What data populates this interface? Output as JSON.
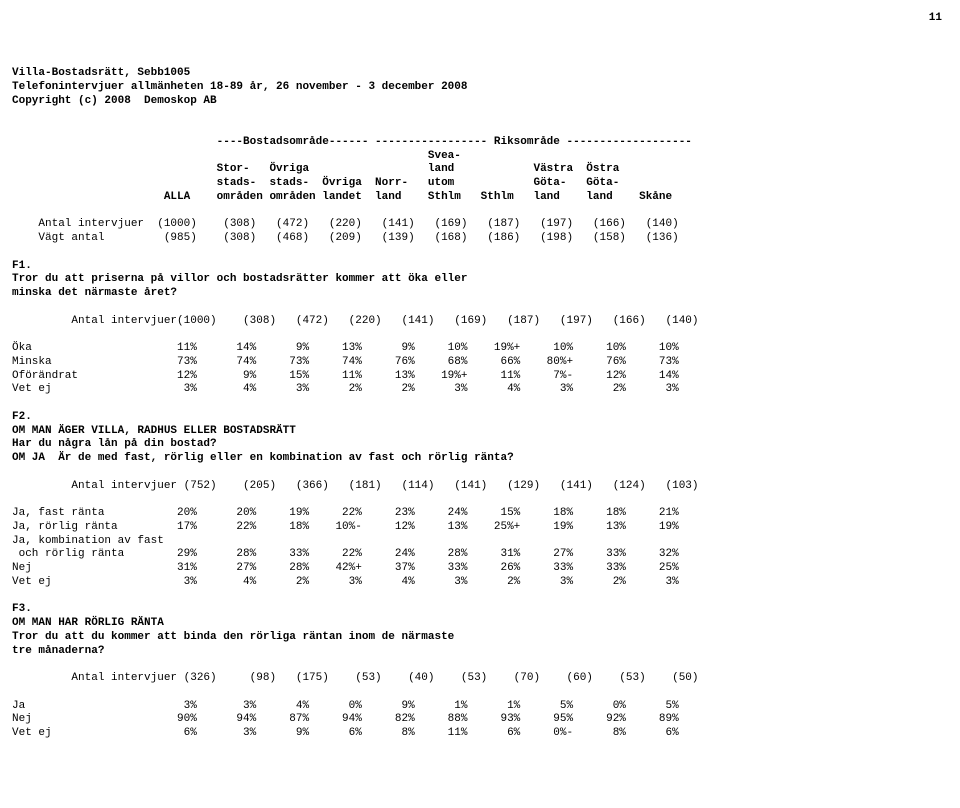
{
  "header": {
    "title1": "Villa-Bostadsrätt, Sebb1005",
    "title2": "Telefonintervjuer allmänheten 18-89 år, 26 november - 3 december 2008",
    "copyright": "Copyright (c) 2008  Demoskop AB",
    "page": "11"
  },
  "colheaders": {
    "l1": "                               ----Bostadsområde------ ----------------- Riksområde -------------------",
    "l2": "                                                               Svea-                                    ",
    "l3": "                               Stor-   Övriga                  land            Västra  Östra            ",
    "l4": "                               stads-  stads-  Övriga  Norr-   utom            Göta-   Göta-            ",
    "l5": "                       ALLA    områden områden landet  land    Sthlm   Sthlm   land    land    Skåne    "
  },
  "rows": {
    "antal_intervjuer": "    Antal intervjuer  (1000)    (308)   (472)   (220)   (141)   (169)   (187)   (197)   (166)   (140)",
    "vagt_antal": "    Vägt antal         (985)    (308)   (468)   (209)   (139)   (168)   (186)   (198)   (158)   (136)"
  },
  "f1": {
    "code": "F1.",
    "q1": "Tror du att priserna på villor och bostadsrätter kommer att öka eller",
    "q2": "minska det närmaste året?",
    "antal": "         Antal intervjuer(1000)    (308)   (472)   (220)   (141)   (169)   (187)   (197)   (166)   (140)",
    "oka": "Öka                      11%      14%      9%     13%      9%     10%    19%+     10%     10%     10%",
    "minska": "Minska                   73%      74%     73%     74%     76%     68%     66%    80%+     76%     73%",
    "oforandrat": "Oförändrat               12%       9%     15%     11%     13%    19%+     11%     7%-     12%     14%",
    "vetej": "Vet ej                    3%       4%      3%      2%      2%      3%      4%      3%      2%      3%"
  },
  "f2": {
    "code": "F2.",
    "q1": "OM MAN ÄGER VILLA, RADHUS ELLER BOSTADSRÄTT",
    "q2": "Har du några lån på din bostad?",
    "q3": "OM JA  Är de med fast, rörlig eller en kombination av fast och rörlig ränta?",
    "antal": "         Antal intervjuer (752)    (205)   (366)   (181)   (114)   (141)   (129)   (141)   (124)   (103)",
    "fast": "Ja, fast ränta           20%      20%     19%     22%     23%     24%     15%     18%     18%     21%",
    "rorlig": "Ja, rörlig ränta         17%      22%     18%    10%-     12%     13%    25%+     19%     13%     19%",
    "komb1": "Ja, kombination av fast",
    "komb2": " och rörlig ränta        29%      28%     33%     22%     24%     28%     31%     27%     33%     32%",
    "nej": "Nej                      31%      27%     28%    42%+     37%     33%     26%     33%     33%     25%",
    "vetej": "Vet ej                    3%       4%      2%      3%      4%      3%      2%      3%      2%      3%"
  },
  "f3": {
    "code": "F3.",
    "q1": "OM MAN HAR RÖRLIG RÄNTA",
    "q2": "Tror du att du kommer att binda den rörliga räntan inom de närmaste",
    "q3": "tre månaderna?",
    "antal": "         Antal intervjuer (326)     (98)   (175)    (53)    (40)    (53)    (70)    (60)    (53)    (50)",
    "ja": "Ja                        3%       3%      4%      0%      9%      1%      1%      5%      0%      5%",
    "nej": "Nej                      90%      94%     87%     94%     82%     88%     93%     95%     92%     89%",
    "vetej": "Vet ej                    6%       3%      9%      6%      8%     11%      6%     0%-      8%      6%"
  }
}
